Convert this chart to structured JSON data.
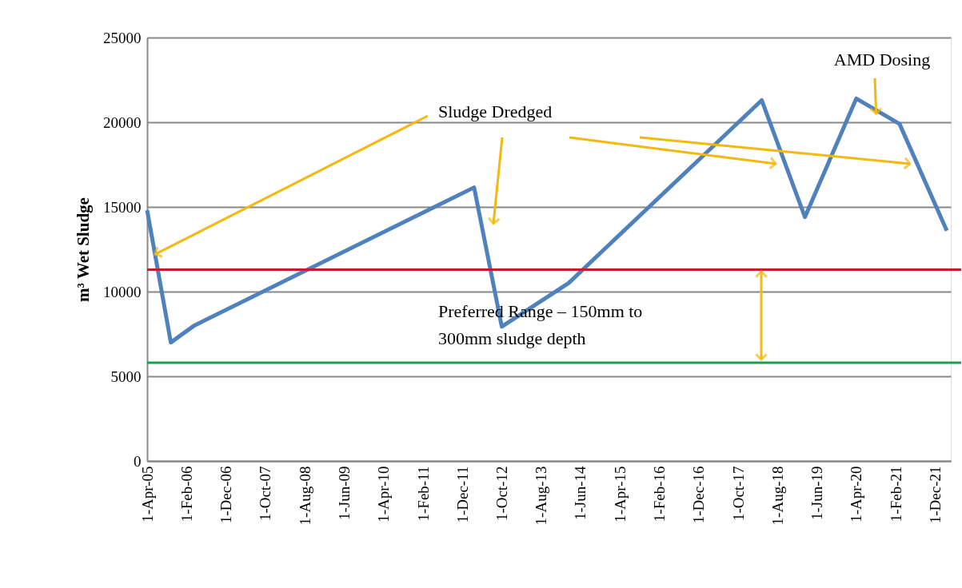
{
  "chart_data": {
    "type": "line",
    "ylabel": "m³ Wet Sludge",
    "x": [
      "2005-04",
      "2005-10",
      "2006-04",
      "2012-03",
      "2012-10",
      "2014-03",
      "2018-04",
      "2019-03",
      "2020-04",
      "2021-03",
      "2022-03"
    ],
    "series": [
      {
        "color": "#4f81bd",
        "values": [
          14800,
          7000,
          8000,
          16150,
          7930,
          10500,
          21300,
          14400,
          21400,
          19900,
          13600
        ]
      }
    ],
    "xlim": [
      "2005-04",
      "2022-04"
    ],
    "xticks": [
      {
        "value": "2005-04-01",
        "label": "1-Apr-05"
      },
      {
        "value": "2006-02-01",
        "label": "1-Feb-06"
      },
      {
        "value": "2006-12-01",
        "label": "1-Dec-06"
      },
      {
        "value": "2007-10-01",
        "label": "1-Oct-07"
      },
      {
        "value": "2008-08-01",
        "label": "1-Aug-08"
      },
      {
        "value": "2009-06-01",
        "label": "1-Jun-09"
      },
      {
        "value": "2010-04-01",
        "label": "1-Apr-10"
      },
      {
        "value": "2011-02-01",
        "label": "1-Feb-11"
      },
      {
        "value": "2011-12-01",
        "label": "1-Dec-11"
      },
      {
        "value": "2012-10-01",
        "label": "1-Oct-12"
      },
      {
        "value": "2013-08-01",
        "label": "1-Aug-13"
      },
      {
        "value": "2014-06-01",
        "label": "1-Jun-14"
      },
      {
        "value": "2015-04-01",
        "label": "1-Apr-15"
      },
      {
        "value": "2016-02-01",
        "label": "1-Feb-16"
      },
      {
        "value": "2016-12-01",
        "label": "1-Dec-16"
      },
      {
        "value": "2017-10-01",
        "label": "1-Oct-17"
      },
      {
        "value": "2018-08-01",
        "label": "1-Aug-18"
      },
      {
        "value": "2019-06-01",
        "label": "1-Jun-19"
      },
      {
        "value": "2020-04-01",
        "label": "1-Apr-20"
      },
      {
        "value": "2021-02-01",
        "label": "1-Feb-21"
      },
      {
        "value": "2021-12-01",
        "label": "1-Dec-21"
      }
    ],
    "ylim": [
      0,
      25000
    ],
    "yticks": [
      0,
      5000,
      10000,
      15000,
      20000,
      25000
    ],
    "grid": "y",
    "marker": "none",
    "line_style": "solid",
    "ref_lines": [
      {
        "axis": "y",
        "value": 11300,
        "color": "#c0202e"
      },
      {
        "axis": "y",
        "value": 5800,
        "color": "#1a9e50"
      }
    ],
    "annotations": [
      {
        "text": "Sludge Dredged",
        "x": "2005-06",
        "y": 12200
      },
      {
        "text": "AMD Dosing",
        "x": "2020-09",
        "y": 20500
      },
      "Preferred Range – 150mm to\n300mm sludge depth"
    ]
  }
}
